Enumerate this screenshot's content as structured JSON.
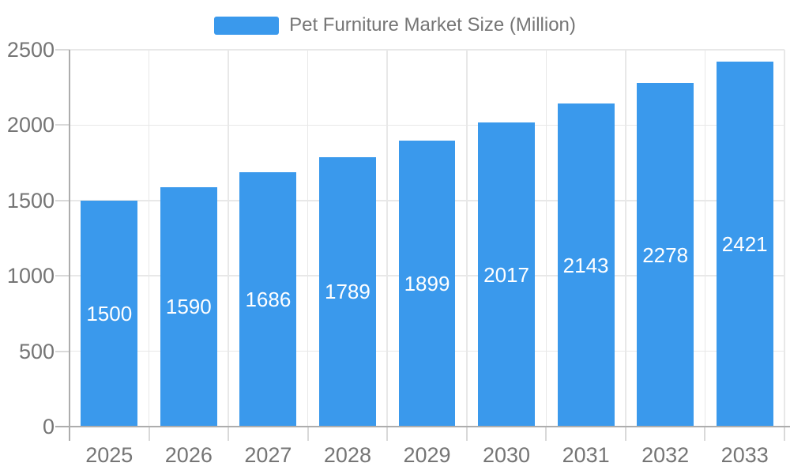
{
  "chart_data": {
    "type": "bar",
    "title": "Pet Furniture Market Size (Million)",
    "categories": [
      "2025",
      "2026",
      "2027",
      "2028",
      "2029",
      "2030",
      "2031",
      "2032",
      "2033"
    ],
    "series": [
      {
        "name": "Pet Furniture Market Size (Million)",
        "values": [
          1500,
          1590,
          1686,
          1789,
          1899,
          2017,
          2143,
          2278,
          2421
        ]
      }
    ],
    "xlabel": "",
    "ylabel": "",
    "ylim": [
      0,
      2500
    ],
    "y_ticks": [
      0,
      500,
      1000,
      1500,
      2000,
      2500
    ],
    "grid": true,
    "legend_position": "top-center",
    "value_labels_position": "inside-center",
    "colors": {
      "bar": "#3A99EC",
      "value_label": "#FFFFFF",
      "axis_text": "#757575",
      "axis_line": "#ADADAD",
      "tick_line": "#D9D9D9",
      "gridline": "#E8E8E8",
      "background": "#FFFFFF"
    }
  }
}
